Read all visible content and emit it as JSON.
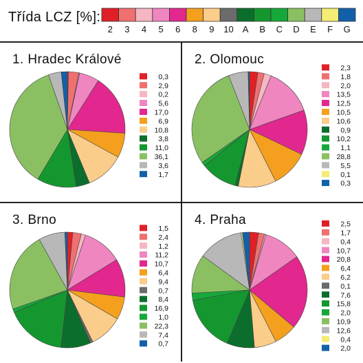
{
  "header": {
    "title": "Třída LCZ [%]:"
  },
  "lcz_classes": [
    {
      "code": "2",
      "color": "#e02027"
    },
    {
      "code": "3",
      "color": "#f07070"
    },
    {
      "code": "4",
      "color": "#f6b6c2"
    },
    {
      "code": "5",
      "color": "#ef86c0"
    },
    {
      "code": "6",
      "color": "#e2278e"
    },
    {
      "code": "8",
      "color": "#f4a01e"
    },
    {
      "code": "9",
      "color": "#fbcd8b"
    },
    {
      "code": "10",
      "color": "#6b6b6b"
    },
    {
      "code": "A",
      "color": "#0c6e2c"
    },
    {
      "code": "B",
      "color": "#15972f"
    },
    {
      "code": "C",
      "color": "#16a83a"
    },
    {
      "code": "D",
      "color": "#8ac062"
    },
    {
      "code": "E",
      "color": "#b8b8b8"
    },
    {
      "code": "F",
      "color": "#f4ec74"
    },
    {
      "code": "G",
      "color": "#1260aa"
    }
  ],
  "chart_data": [
    {
      "type": "pie",
      "title": "1. Hradec Králové",
      "series": [
        {
          "code": "2",
          "label": "0,3",
          "value": 0.3
        },
        {
          "code": "3",
          "label": "2,9",
          "value": 2.9
        },
        {
          "code": "4",
          "label": "0,2",
          "value": 0.2
        },
        {
          "code": "5",
          "label": "5,6",
          "value": 5.6
        },
        {
          "code": "6",
          "label": "17,0",
          "value": 17.0
        },
        {
          "code": "8",
          "label": "6,9",
          "value": 6.9
        },
        {
          "code": "9",
          "label": "10,8",
          "value": 10.8
        },
        {
          "code": "A",
          "label": "3,8",
          "value": 3.8
        },
        {
          "code": "B",
          "label": "11,0",
          "value": 11.0
        },
        {
          "code": "D",
          "label": "36,1",
          "value": 36.1
        },
        {
          "code": "E",
          "label": "3,6",
          "value": 3.6
        },
        {
          "code": "G",
          "label": "1,7",
          "value": 1.7
        }
      ]
    },
    {
      "type": "pie",
      "title": "2. Olomouc",
      "series": [
        {
          "code": "2",
          "label": "2,3",
          "value": 2.3
        },
        {
          "code": "3",
          "label": "1,8",
          "value": 1.8
        },
        {
          "code": "4",
          "label": "2,0",
          "value": 2.0
        },
        {
          "code": "5",
          "label": "13,5",
          "value": 13.5
        },
        {
          "code": "6",
          "label": "12,5",
          "value": 12.5
        },
        {
          "code": "8",
          "label": "10,5",
          "value": 10.5
        },
        {
          "code": "9",
          "label": "10,6",
          "value": 10.6
        },
        {
          "code": "A",
          "label": "0,9",
          "value": 0.9
        },
        {
          "code": "B",
          "label": "10,2",
          "value": 10.2
        },
        {
          "code": "C",
          "label": "1,1",
          "value": 1.1
        },
        {
          "code": "D",
          "label": "28,8",
          "value": 28.8
        },
        {
          "code": "E",
          "label": "5,5",
          "value": 5.5
        },
        {
          "code": "F",
          "label": "0,1",
          "value": 0.1
        },
        {
          "code": "G",
          "label": "0,3",
          "value": 0.3
        }
      ]
    },
    {
      "type": "pie",
      "title": "3. Brno",
      "series": [
        {
          "code": "2",
          "label": "1,5",
          "value": 1.5
        },
        {
          "code": "3",
          "label": "2,4",
          "value": 2.4
        },
        {
          "code": "4",
          "label": "1,2",
          "value": 1.2
        },
        {
          "code": "5",
          "label": "11,2",
          "value": 11.2
        },
        {
          "code": "6",
          "label": "10,7",
          "value": 10.7
        },
        {
          "code": "8",
          "label": "6,4",
          "value": 6.4
        },
        {
          "code": "9",
          "label": "9,4",
          "value": 9.4
        },
        {
          "code": "10",
          "label": "0,7",
          "value": 0.7
        },
        {
          "code": "A",
          "label": "8,4",
          "value": 8.4
        },
        {
          "code": "B",
          "label": "16,9",
          "value": 16.9
        },
        {
          "code": "C",
          "label": "1,0",
          "value": 1.0
        },
        {
          "code": "D",
          "label": "22,3",
          "value": 22.3
        },
        {
          "code": "E",
          "label": "7,4",
          "value": 7.4
        },
        {
          "code": "G",
          "label": "0,7",
          "value": 0.7
        }
      ]
    },
    {
      "type": "pie",
      "title": "4. Praha",
      "series": [
        {
          "code": "2",
          "label": "2,5",
          "value": 2.5
        },
        {
          "code": "3",
          "label": "1,7",
          "value": 1.7
        },
        {
          "code": "4",
          "label": "0,4",
          "value": 0.4
        },
        {
          "code": "5",
          "label": "10,7",
          "value": 10.7
        },
        {
          "code": "6",
          "label": "20,8",
          "value": 20.8
        },
        {
          "code": "8",
          "label": "6,4",
          "value": 6.4
        },
        {
          "code": "9",
          "label": "6,2",
          "value": 6.2
        },
        {
          "code": "10",
          "label": "0,1",
          "value": 0.1
        },
        {
          "code": "A",
          "label": "7,6",
          "value": 7.6
        },
        {
          "code": "B",
          "label": "15,8",
          "value": 15.8
        },
        {
          "code": "C",
          "label": "2,0",
          "value": 2.0
        },
        {
          "code": "D",
          "label": "10,9",
          "value": 10.9
        },
        {
          "code": "E",
          "label": "12,6",
          "value": 12.6
        },
        {
          "code": "F",
          "label": "0,4",
          "value": 0.4
        },
        {
          "code": "G",
          "label": "2,0",
          "value": 2.0
        }
      ]
    }
  ]
}
